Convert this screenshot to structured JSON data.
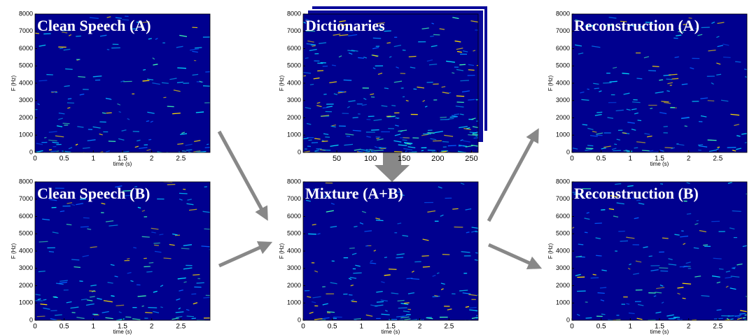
{
  "panels": [
    {
      "title": "Clean Speech (A)",
      "y_label": "F (Hz)",
      "x_label": "time (s)",
      "xlim": [
        0,
        3
      ],
      "ylim": [
        0,
        8000
      ],
      "xticks": [
        0,
        0.5,
        1,
        1.5,
        2,
        2.5
      ],
      "yticks": [
        0,
        1000,
        2000,
        3000,
        4000,
        5000,
        6000,
        7000,
        8000
      ]
    },
    {
      "title": "Clean Speech (B)",
      "y_label": "F (Hz)",
      "x_label": "time (s)",
      "xlim": [
        0,
        3
      ],
      "ylim": [
        0,
        8000
      ],
      "xticks": [
        0,
        0.5,
        1,
        1.5,
        2,
        2.5
      ],
      "yticks": [
        0,
        1000,
        2000,
        3000,
        4000,
        5000,
        6000,
        7000,
        8000
      ]
    },
    {
      "title": "Dictionaries",
      "y_label": "F (Hz)",
      "xlim": [
        0,
        260
      ],
      "ylim": [
        0,
        8000
      ],
      "xticks": [
        50,
        100,
        150,
        200,
        250
      ],
      "yticks": [
        0,
        1000,
        2000,
        3000,
        4000,
        5000,
        6000,
        7000,
        8000
      ]
    },
    {
      "title": "Mixture (A+B)",
      "y_label": "F (Hz)",
      "x_label": "time (s)",
      "xlim": [
        0,
        3
      ],
      "ylim": [
        0,
        8000
      ],
      "xticks": [
        0,
        0.5,
        1,
        1.5,
        2,
        2.5
      ],
      "yticks": [
        0,
        1000,
        2000,
        3000,
        4000,
        5000,
        6000,
        7000,
        8000
      ]
    },
    {
      "title": "Reconstruction (A)",
      "y_label": "F (Hz)",
      "x_label": "time (s)",
      "xlim": [
        0,
        3
      ],
      "ylim": [
        0,
        8000
      ],
      "xticks": [
        0,
        0.5,
        1,
        1.5,
        2,
        2.5
      ],
      "yticks": [
        0,
        1000,
        2000,
        3000,
        4000,
        5000,
        6000,
        7000,
        8000
      ]
    },
    {
      "title": "Reconstruction (B)",
      "y_label": "F (Hz)",
      "x_label": "time (s)",
      "xlim": [
        0,
        3
      ],
      "ylim": [
        0,
        8000
      ],
      "xticks": [
        0,
        0.5,
        1,
        1.5,
        2,
        2.5
      ],
      "yticks": [
        0,
        1000,
        2000,
        3000,
        4000,
        5000,
        6000,
        7000,
        8000
      ]
    }
  ]
}
